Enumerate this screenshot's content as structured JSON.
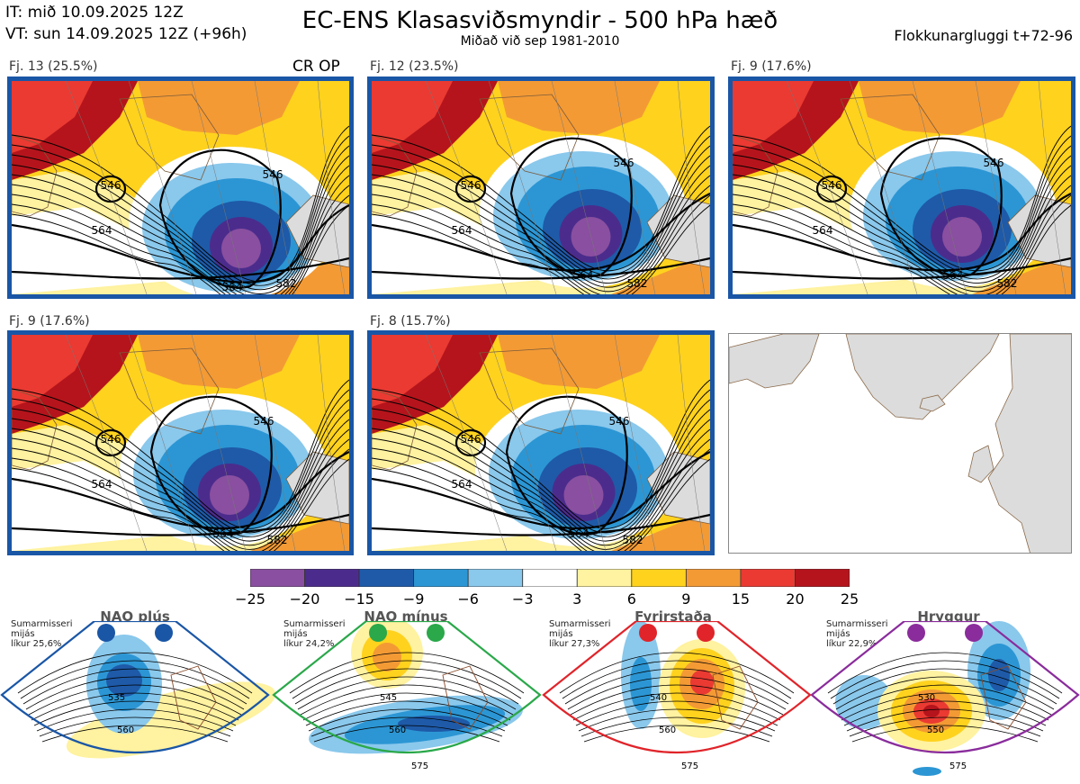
{
  "header": {
    "init_time": "IT: mið 10.09.2025 12Z",
    "valid_time": "VT: sun 14.09.2025 12Z  (+96h)",
    "title": "EC-ENS Klasasviðsmyndir - 500 hPa hæð",
    "subtitle": "Miðað við sep 1981-2010",
    "window": "Flokkunargluggi t+72-96"
  },
  "clusters": [
    {
      "label": "Fj. 13 (25.5%)",
      "tag": "CR OP",
      "contours": [
        "546",
        "546",
        "564",
        "564",
        "582"
      ]
    },
    {
      "label": "Fj. 12 (23.5%)",
      "tag": "",
      "contours": [
        "546",
        "546",
        "564",
        "564",
        "582"
      ]
    },
    {
      "label": "Fj. 9 (17.6%)",
      "tag": "",
      "contours": [
        "546",
        "546",
        "564",
        "564",
        "582"
      ]
    },
    {
      "label": "Fj. 9 (17.6%)",
      "tag": "",
      "contours": [
        "546",
        "546",
        "564",
        "564",
        "582"
      ]
    },
    {
      "label": "Fj. 8 (15.7%)",
      "tag": "",
      "contours": [
        "546",
        "546",
        "564",
        "564",
        "582"
      ]
    }
  ],
  "colorbar": {
    "ticks": [
      "−25",
      "−20",
      "−15",
      "−9",
      "−6",
      "−3",
      "3",
      "6",
      "9",
      "15",
      "20",
      "25"
    ],
    "colors": [
      "#8a4fa0",
      "#4b2c8c",
      "#1e5aa8",
      "#2c96d4",
      "#8ac8ec",
      "#ffffff",
      "#fff2a0",
      "#ffd21e",
      "#f39a35",
      "#ea3a32",
      "#b5141c"
    ]
  },
  "regimes": [
    {
      "name": "NAO plús",
      "season": "Sumarmisseri",
      "unit": "mijás",
      "prob": "líkur 25,6%",
      "color": "#1a56a6",
      "labels": [
        "535",
        "560"
      ]
    },
    {
      "name": "NAO mínus",
      "season": "Sumarmisseri",
      "unit": "mijás",
      "prob": "líkur 24,2%",
      "color": "#2aa84a",
      "labels": [
        "545",
        "560",
        "575"
      ]
    },
    {
      "name": "Fyrirstaða",
      "season": "Sumarmisseri",
      "unit": "mijás",
      "prob": "líkur 27,3%",
      "color": "#e0242a",
      "labels": [
        "540",
        "560",
        "575"
      ]
    },
    {
      "name": "Hryggur",
      "season": "Sumarmisseri",
      "unit": "mijás",
      "prob": "líkur 22,9%",
      "color": "#8a2c9c",
      "labels": [
        "530",
        "550",
        "575"
      ]
    }
  ]
}
